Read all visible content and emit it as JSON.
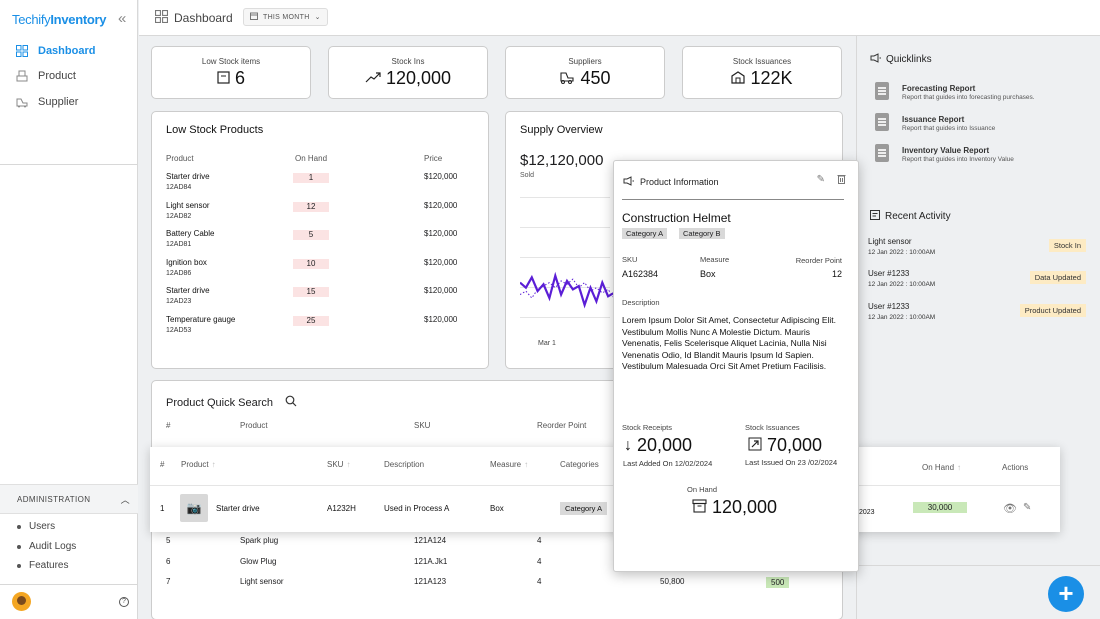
{
  "app": {
    "brand_a": "Techify",
    "brand_b": "Inventory"
  },
  "sidebar": {
    "nav": [
      {
        "label": "Dashboard",
        "icon": "dashboard-icon"
      },
      {
        "label": "Product",
        "icon": "product-icon"
      },
      {
        "label": "Supplier",
        "icon": "supplier-icon"
      }
    ],
    "admin_label": "ADMINISTRATION",
    "admin_items": [
      "Users",
      "Audit Logs",
      "Features"
    ]
  },
  "topbar": {
    "title": "Dashboard",
    "period": "THIS MONTH"
  },
  "stats": [
    {
      "label": "Low Stock items",
      "value": "6",
      "icon": "box-icon"
    },
    {
      "label": "Stock Ins",
      "value": "120,000",
      "icon": "trend-up-icon"
    },
    {
      "label": "Suppliers",
      "value": "450",
      "icon": "forklift-icon"
    },
    {
      "label": "Stock Issuances",
      "value": "122K",
      "icon": "warehouse-icon"
    }
  ],
  "low_stock": {
    "title": "Low Stock Products",
    "headers": {
      "product": "Product",
      "on_hand": "On Hand",
      "price": "Price"
    },
    "rows": [
      {
        "name": "Starter drive",
        "code": "12AD84",
        "qty": "1",
        "price": "$120,000"
      },
      {
        "name": "Light sensor",
        "code": "12AD82",
        "qty": "12",
        "price": "$120,000"
      },
      {
        "name": "Battery Cable",
        "code": "12AD81",
        "qty": "5",
        "price": "$120,000"
      },
      {
        "name": "Ignition box",
        "code": "12AD86",
        "qty": "10",
        "price": "$120,000"
      },
      {
        "name": "Starter drive",
        "code": "12AD23",
        "qty": "15",
        "price": "$120,000"
      },
      {
        "name": "Temperature gauge",
        "code": "12AD53",
        "qty": "25",
        "price": "$120,000"
      }
    ]
  },
  "supply": {
    "title": "Supply Overview",
    "total": "$12,120,000",
    "sub": "Sold",
    "x_label": "Mar 1"
  },
  "chart_data": {
    "type": "line",
    "x": [
      0,
      1,
      2,
      3,
      4,
      5,
      6,
      7,
      8,
      9,
      10,
      11,
      12,
      13,
      14,
      15,
      16
    ],
    "series": [
      {
        "values": [
          33,
          30,
          36,
          28,
          32,
          24,
          37,
          26,
          34,
          29,
          31,
          20,
          30,
          22,
          33,
          25,
          27
        ]
      },
      {
        "values": [
          26,
          28,
          24,
          29,
          31,
          33,
          30,
          34,
          32,
          35,
          30,
          33,
          28,
          30,
          27,
          29,
          24
        ]
      }
    ],
    "colors": [
      "#5b1ed6",
      "#5b1ed6"
    ]
  },
  "quick_search": {
    "title": "Product Quick Search",
    "headers": {
      "num": "#",
      "product": "Product",
      "sku": "SKU",
      "reorder": "Reorder Point"
    },
    "rows": [
      {
        "num": "5",
        "product": "Spark plug",
        "sku": "121A124",
        "reorder": "4",
        "val": "",
        "badge": ""
      },
      {
        "num": "6",
        "product": "Glow Plug",
        "sku": "121A.Jk1",
        "reorder": "4",
        "val": "",
        "badge": ""
      },
      {
        "num": "7",
        "product": "Light sensor",
        "sku": "121A123",
        "reorder": "4",
        "val": "50,800",
        "badge": "500"
      }
    ]
  },
  "row_card": {
    "headers": {
      "num": "#",
      "product": "Product",
      "sku": "SKU",
      "description": "Description",
      "measure": "Measure",
      "categories": "Categories",
      "on_hand": "On Hand",
      "actions": "Actions"
    },
    "row": {
      "num": "1",
      "product": "Starter drive",
      "sku": "A1232H",
      "description": "Used in Process A",
      "measure": "Box",
      "category": "Category A",
      "date": "2023",
      "on_hand": "30,000"
    }
  },
  "modal": {
    "title": "Product Information",
    "name": "Construction Helmet",
    "tags": [
      "Category A",
      "Category B"
    ],
    "sku_label": "SKU",
    "sku": "A162384",
    "measure_label": "Measure",
    "measure": "Box",
    "reorder_label": "Reorder Point",
    "reorder": "12",
    "desc_label": "Description",
    "description": "Lorem Ipsum Dolor Sit Amet, Consectetur Adipiscing Elit. Vestibulum Mollis Nunc A Molestie Dictum. Mauris Venenatis, Felis Scelerisque Aliquet Lacinia, Nulla Nisi Venenatis Odio, Id Blandit Mauris Ipsum Id Sapien. Vestibulum Malesuada Orci Sit Amet Pretium Facilisis.",
    "receipts_label": "Stock Receipts",
    "receipts": "20,000",
    "receipts_sub": "Last Added On 12/02/2024",
    "issuances_label": "Stock Issuances",
    "issuances": "70,000",
    "issuances_sub": "Last Issued On 23 /02/2024",
    "onhand_label": "On Hand",
    "onhand": "120,000"
  },
  "quicklinks": {
    "title": "Quicklinks",
    "items": [
      {
        "title": "Forecasting Report",
        "desc": "Report that guides into forecasting  purchases."
      },
      {
        "title": "Issuance Report",
        "desc": "Report that guides into Issuance"
      },
      {
        "title": "Inventory Value Report",
        "desc": "Report that guides into Inventory Value"
      }
    ]
  },
  "activity": {
    "title": "Recent Activity",
    "items": [
      {
        "title": "Light sensor",
        "date": "12 Jan 2022 : 10:00AM",
        "badge": "Stock In"
      },
      {
        "title": "User #1233",
        "date": "12 Jan 2022 : 10:00AM",
        "badge": "Data Updated"
      },
      {
        "title": "User #1233",
        "date": "12 Jan 2022 : 10:00AM",
        "badge": "Product Updated"
      }
    ]
  },
  "fab_label": "+"
}
